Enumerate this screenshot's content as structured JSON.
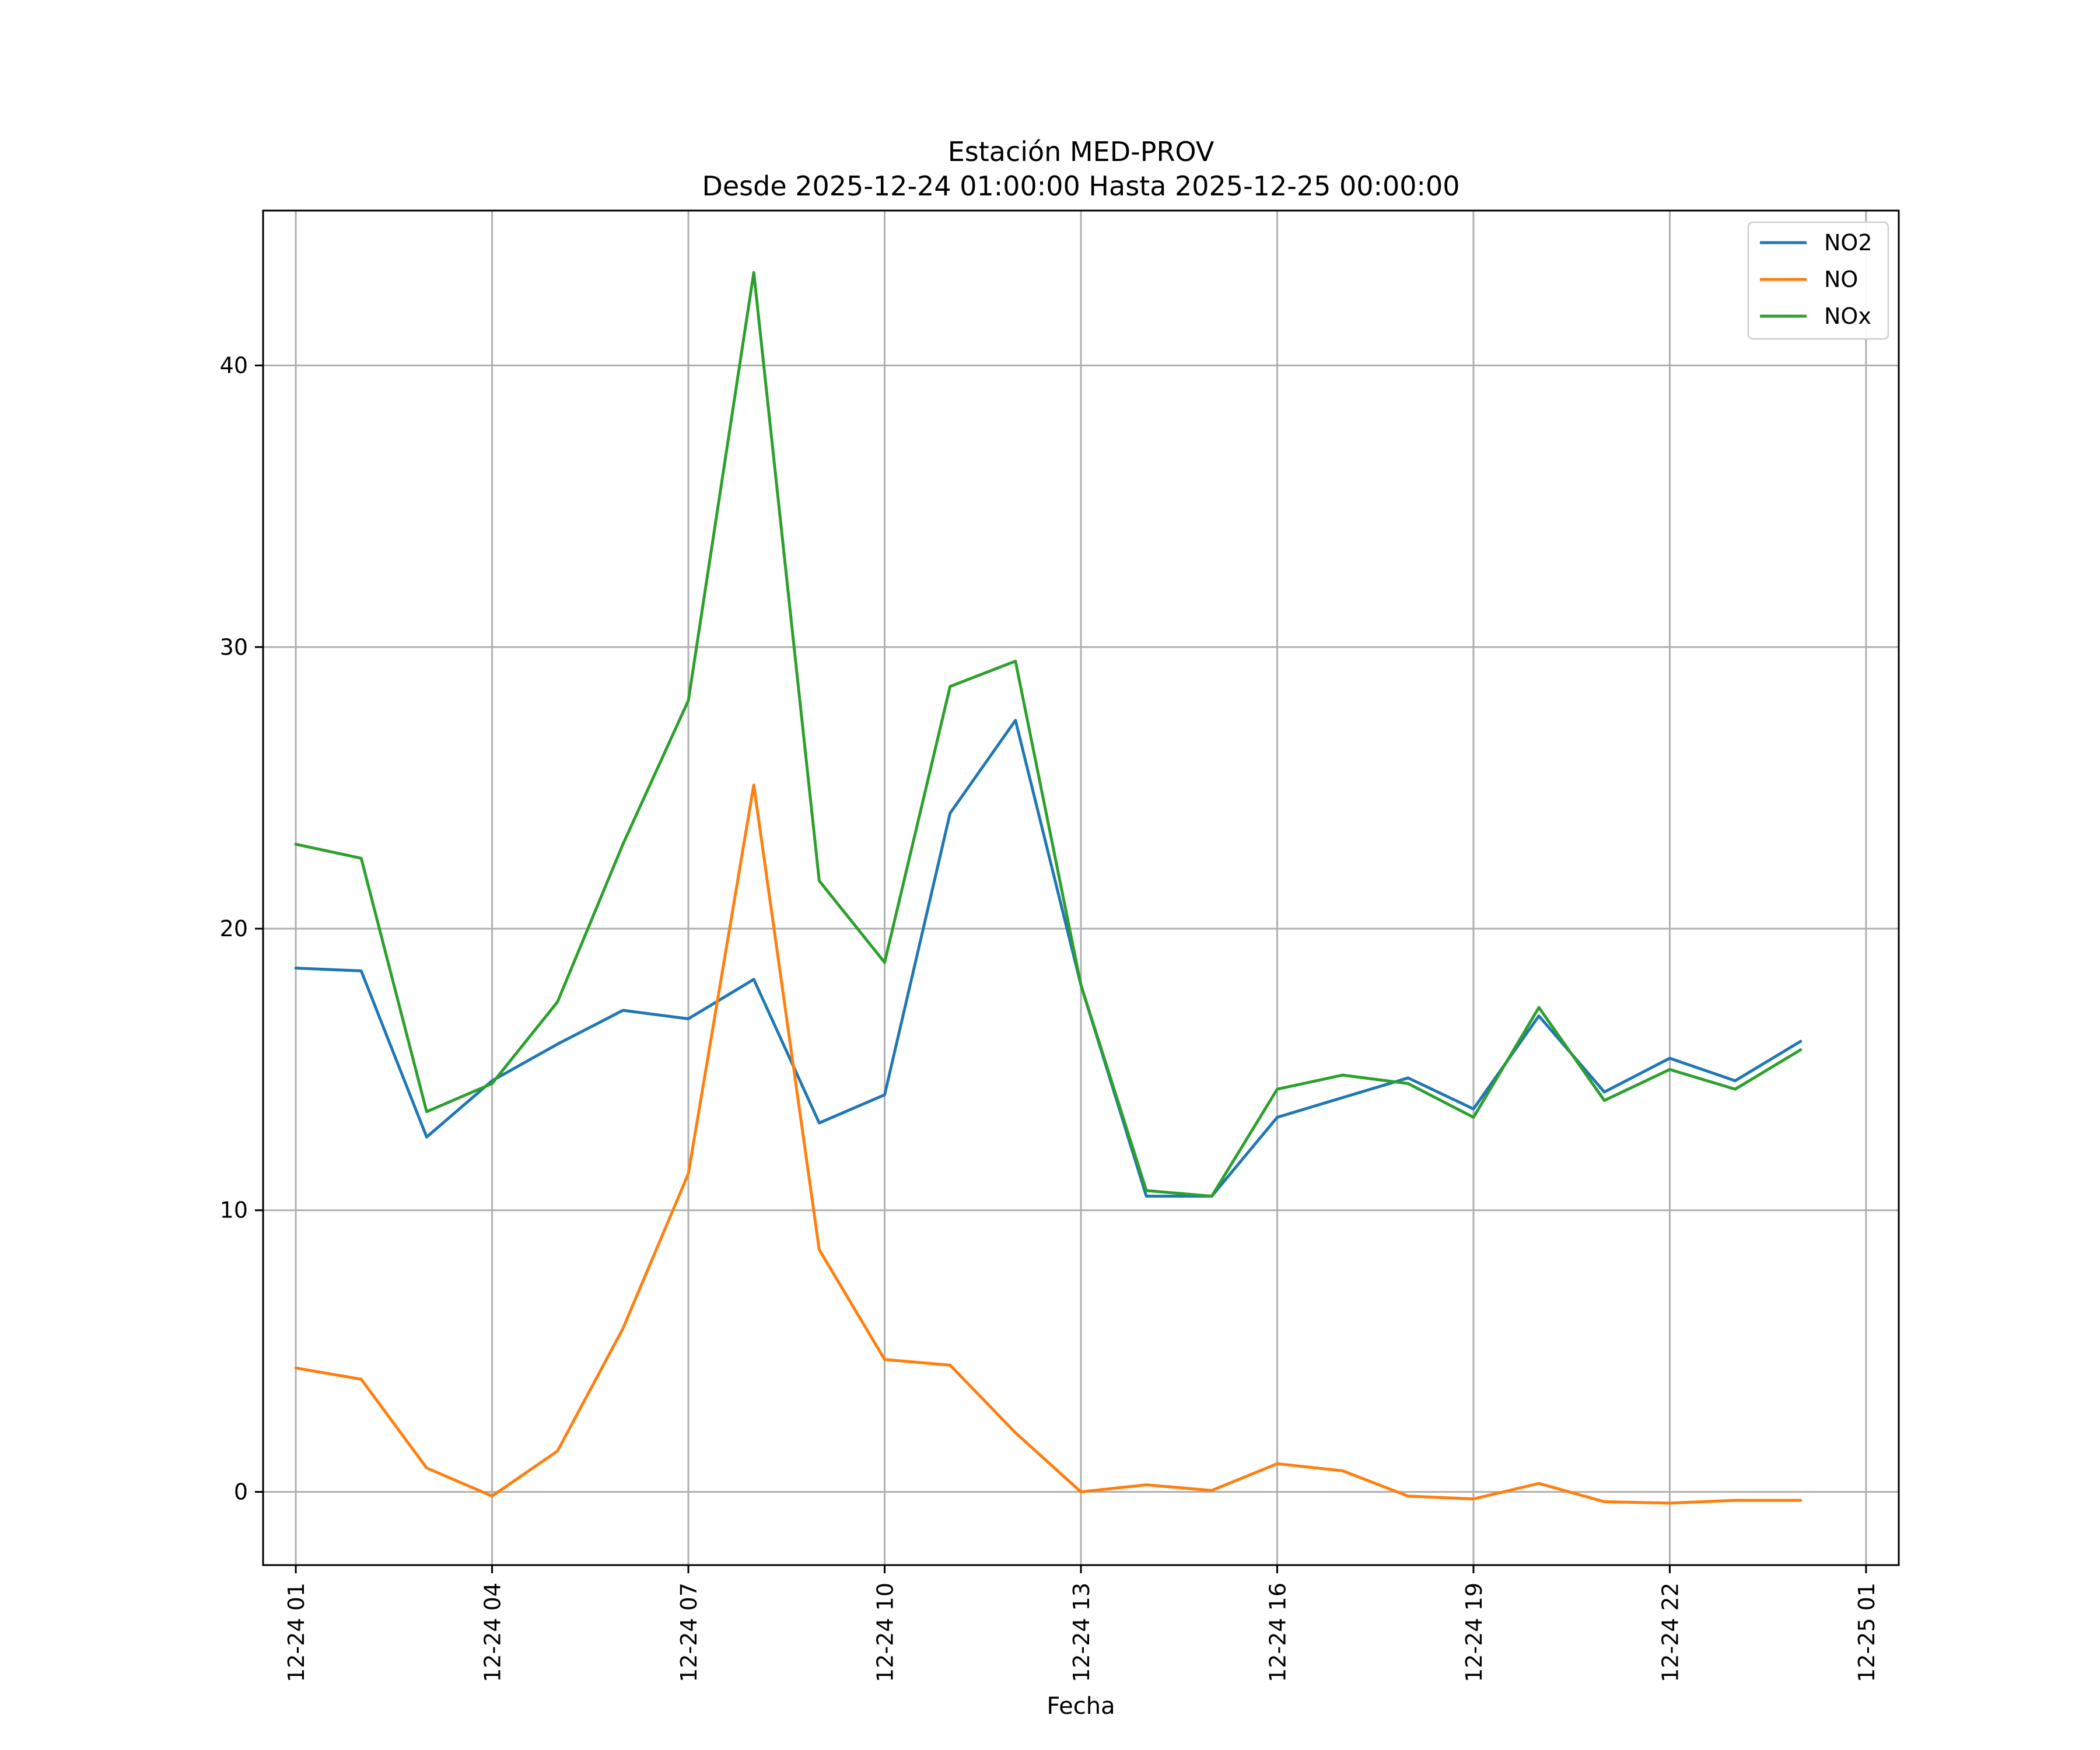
{
  "chart_data": {
    "type": "line",
    "title": "Estación MED-PROV",
    "subtitle": "Desde 2025-12-24 01:00:00 Hasta 2025-12-25 00:00:00",
    "xlabel": "Fecha",
    "ylabel": "",
    "x": [
      "12-24 01",
      "12-24 02",
      "12-24 03",
      "12-24 04",
      "12-24 05",
      "12-24 06",
      "12-24 07",
      "12-24 08",
      "12-24 09",
      "12-24 10",
      "12-24 11",
      "12-24 12",
      "12-24 13",
      "12-24 14",
      "12-24 15",
      "12-24 16",
      "12-24 17",
      "12-24 18",
      "12-24 19",
      "12-24 20",
      "12-24 21",
      "12-24 22",
      "12-24 23",
      "12-25 00"
    ],
    "xlim": [
      -0.5,
      24.5
    ],
    "ylim": [
      -2.6,
      45.5
    ],
    "xticks": [
      {
        "pos": 0,
        "label": "12-24 01"
      },
      {
        "pos": 3,
        "label": "12-24 04"
      },
      {
        "pos": 6,
        "label": "12-24 07"
      },
      {
        "pos": 9,
        "label": "12-24 10"
      },
      {
        "pos": 12,
        "label": "12-24 13"
      },
      {
        "pos": 15,
        "label": "12-24 16"
      },
      {
        "pos": 18,
        "label": "12-24 19"
      },
      {
        "pos": 21,
        "label": "12-24 22"
      },
      {
        "pos": 24,
        "label": "12-25 01"
      }
    ],
    "yticks": [
      0,
      10,
      20,
      30,
      40
    ],
    "grid": true,
    "legend_position": "top-right",
    "series": [
      {
        "name": "NO2",
        "color": "#1f77b4",
        "values": [
          18.6,
          18.5,
          12.6,
          14.6,
          15.9,
          17.1,
          16.8,
          18.2,
          13.1,
          14.1,
          24.1,
          27.4,
          18.0,
          10.5,
          10.5,
          13.3,
          14.0,
          14.7,
          13.6,
          16.9,
          14.2,
          15.4,
          14.6,
          16.0
        ]
      },
      {
        "name": "NO",
        "color": "#ff7f0e",
        "values": [
          4.4,
          4.0,
          0.85,
          -0.15,
          1.45,
          5.8,
          11.3,
          25.1,
          8.6,
          4.7,
          4.5,
          2.1,
          0.0,
          0.25,
          0.05,
          1.0,
          0.75,
          -0.15,
          -0.25,
          0.3,
          -0.35,
          -0.4,
          -0.3,
          -0.3
        ]
      },
      {
        "name": "NOx",
        "color": "#2ca02c",
        "values": [
          23.0,
          22.5,
          13.5,
          14.5,
          17.4,
          23.0,
          28.1,
          43.3,
          21.7,
          18.8,
          28.6,
          29.5,
          18.0,
          10.7,
          10.5,
          14.3,
          14.8,
          14.5,
          13.3,
          17.2,
          13.9,
          15.0,
          14.3,
          15.7
        ]
      }
    ]
  }
}
